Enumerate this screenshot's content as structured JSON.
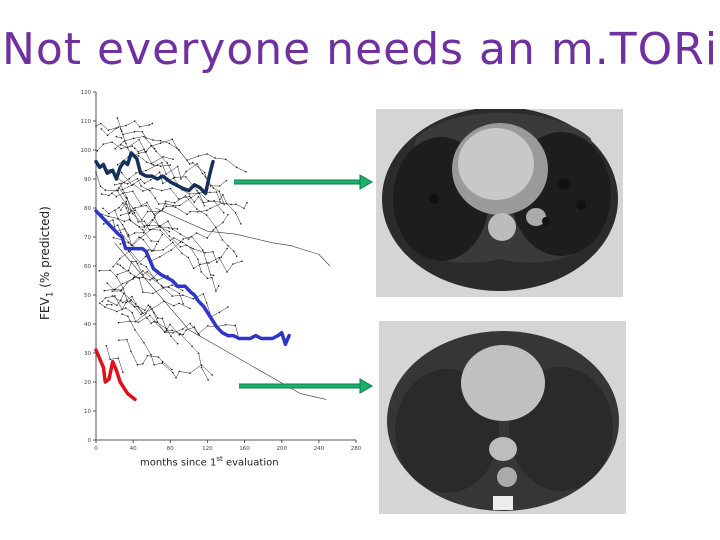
{
  "title": "Not everyone needs an m.TORi",
  "y_label_main": "FEV",
  "y_label_sub": "1",
  "y_label_rest": " (% predicted)",
  "x_label_main": "months since 1",
  "x_label_sup": "st",
  "x_label_rest": " evaluation",
  "colors": {
    "title": "#7030a0",
    "arrow": "#1ab26b",
    "navy": "#15305a",
    "blue": "#2f35c8",
    "red": "#e0101a"
  },
  "chart_data": {
    "type": "line",
    "title": "",
    "xlabel": "months since 1st evaluation",
    "ylabel": "FEV1 (% predicted)",
    "xlim": [
      0,
      280
    ],
    "ylim": [
      0,
      120
    ],
    "x_ticks": [
      0,
      40,
      80,
      120,
      160,
      200,
      240,
      280
    ],
    "y_ticks": [
      0,
      10,
      20,
      30,
      40,
      50,
      60,
      70,
      80,
      90,
      100,
      110,
      120
    ],
    "highlighted": [
      {
        "color": "navy",
        "points": [
          [
            0,
            96
          ],
          [
            4,
            94
          ],
          [
            8,
            95
          ],
          [
            12,
            92
          ],
          [
            18,
            93
          ],
          [
            22,
            90
          ],
          [
            26,
            94
          ],
          [
            30,
            96
          ],
          [
            34,
            95
          ],
          [
            38,
            99
          ],
          [
            44,
            97
          ],
          [
            48,
            92
          ],
          [
            54,
            91
          ],
          [
            60,
            91
          ],
          [
            66,
            90
          ],
          [
            72,
            91
          ],
          [
            80,
            89
          ],
          [
            86,
            88
          ],
          [
            92,
            87
          ],
          [
            100,
            86
          ],
          [
            106,
            88
          ],
          [
            112,
            87
          ],
          [
            118,
            85
          ],
          [
            122,
            91
          ],
          [
            126,
            96
          ]
        ]
      },
      {
        "color": "blue",
        "points": [
          [
            0,
            79
          ],
          [
            6,
            77
          ],
          [
            12,
            75
          ],
          [
            18,
            73
          ],
          [
            24,
            71
          ],
          [
            28,
            70
          ],
          [
            32,
            66
          ],
          [
            38,
            66
          ],
          [
            44,
            66
          ],
          [
            50,
            66
          ],
          [
            54,
            65
          ],
          [
            58,
            62
          ],
          [
            62,
            59
          ],
          [
            66,
            58
          ],
          [
            70,
            57
          ],
          [
            76,
            56
          ],
          [
            82,
            55
          ],
          [
            88,
            53
          ],
          [
            96,
            53
          ],
          [
            102,
            51
          ],
          [
            106,
            50
          ],
          [
            110,
            48
          ],
          [
            116,
            46
          ],
          [
            120,
            44
          ],
          [
            124,
            42
          ],
          [
            130,
            39
          ],
          [
            136,
            37
          ],
          [
            142,
            36
          ],
          [
            148,
            36
          ],
          [
            154,
            35
          ],
          [
            160,
            35
          ],
          [
            166,
            35
          ],
          [
            172,
            36
          ],
          [
            178,
            35
          ],
          [
            184,
            35
          ],
          [
            190,
            35
          ],
          [
            196,
            36
          ],
          [
            200,
            37
          ],
          [
            204,
            33
          ],
          [
            208,
            36
          ]
        ]
      },
      {
        "color": "red",
        "points": [
          [
            0,
            31
          ],
          [
            4,
            28
          ],
          [
            8,
            25
          ],
          [
            10,
            20
          ],
          [
            14,
            21
          ],
          [
            18,
            27
          ],
          [
            22,
            24
          ],
          [
            26,
            20
          ],
          [
            30,
            18
          ],
          [
            34,
            16
          ],
          [
            38,
            15
          ],
          [
            42,
            14
          ]
        ]
      }
    ]
  },
  "images": [
    {
      "label": "chest CT scan, upper"
    },
    {
      "label": "chest CT scan, lower"
    }
  ]
}
